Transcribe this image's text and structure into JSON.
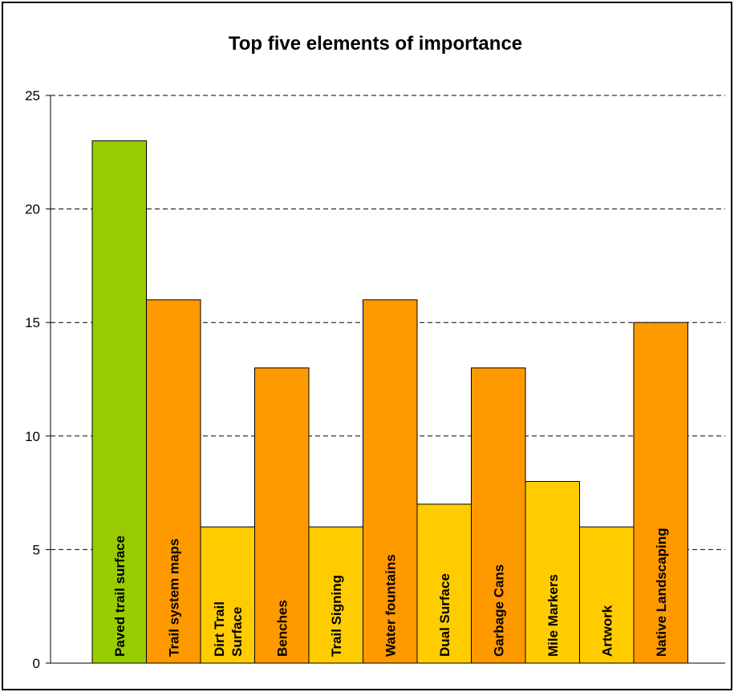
{
  "chart_data": {
    "type": "bar",
    "title": "Top five elements of importance",
    "xlabel": "",
    "ylabel": "",
    "ylim": [
      0,
      25
    ],
    "yticks": [
      0,
      5,
      10,
      15,
      20,
      25
    ],
    "grid": true,
    "legend": "none",
    "categories": [
      "Paved trail surface",
      "Trail system maps",
      "Dirt Trail Surface",
      "Benches",
      "Trail Signing",
      "Water fountains",
      "Dual Surface",
      "Garbage Cans",
      "Mile Markers",
      "Artwork",
      "Native Landscaping"
    ],
    "label_lines": [
      [
        "Paved trail surface"
      ],
      [
        "Trail system maps"
      ],
      [
        "Dirt Trail",
        "Surface"
      ],
      [
        "Benches"
      ],
      [
        "Trail Signing"
      ],
      [
        "Water fountains"
      ],
      [
        "Dual Surface"
      ],
      [
        "Garbage Cans"
      ],
      [
        "Mile Markers"
      ],
      [
        "Artwork"
      ],
      [
        "Native Landscaping"
      ]
    ],
    "values": [
      23,
      16,
      6,
      13,
      6,
      16,
      7,
      13,
      8,
      6,
      15
    ],
    "colors": [
      "#99cc00",
      "#ff9900",
      "#ffcc00",
      "#ff9900",
      "#ffcc00",
      "#ff9900",
      "#ffcc00",
      "#ff9900",
      "#ffcc00",
      "#ffcc00",
      "#ff9900"
    ]
  }
}
